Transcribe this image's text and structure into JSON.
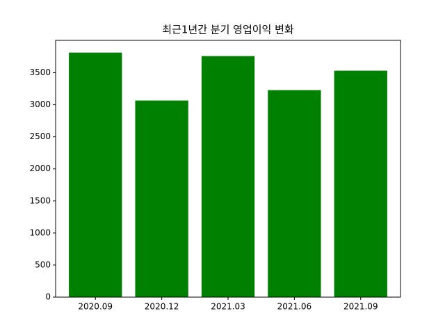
{
  "chart_data": {
    "type": "bar",
    "title": "최근1년간 분기 영업이익 변화",
    "categories": [
      "2020.09",
      "2020.12",
      "2021.03",
      "2021.06",
      "2021.09"
    ],
    "values": [
      3814,
      3066,
      3760,
      3229,
      3532
    ],
    "color": "#008000",
    "ylim": [
      0,
      4005
    ],
    "yticks": [
      0,
      500,
      1000,
      1500,
      2000,
      2500,
      3000,
      3500
    ]
  }
}
